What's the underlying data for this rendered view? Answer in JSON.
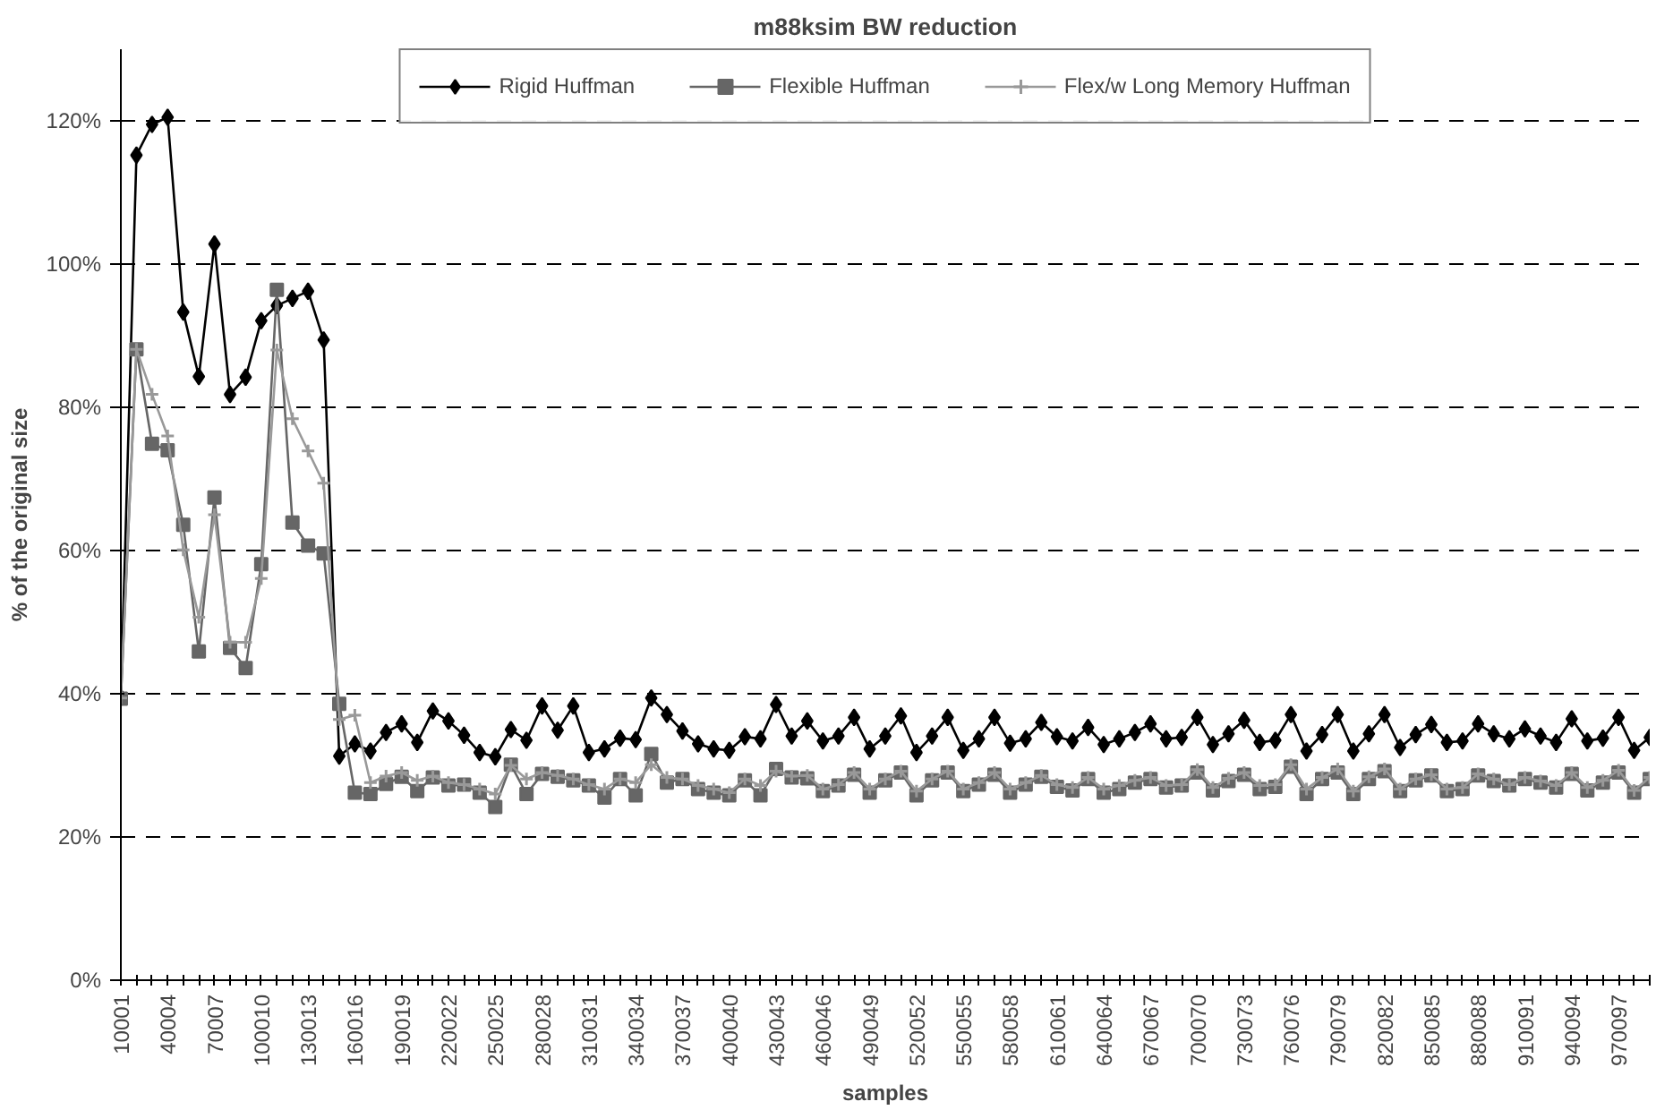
{
  "chart_data": {
    "type": "line",
    "title": "m88ksim BW reduction",
    "xlabel": "samples",
    "ylabel": "% of the original size",
    "categories": [
      "10001",
      null,
      null,
      "40004",
      null,
      null,
      "70007",
      null,
      null,
      "100010",
      null,
      null,
      "130013",
      null,
      null,
      "160016",
      null,
      null,
      "190019",
      null,
      null,
      "220022",
      null,
      null,
      "250025",
      null,
      null,
      "280028",
      null,
      null,
      "310031",
      null,
      null,
      "340034",
      null,
      null,
      "370037",
      null,
      null,
      "400040",
      null,
      null,
      "430043",
      null,
      null,
      "460046",
      null,
      null,
      "490049",
      null,
      null,
      "520052",
      null,
      null,
      "550055",
      null,
      null,
      "580058",
      null,
      null,
      "610061",
      null,
      null,
      "640064",
      null,
      null,
      "670067",
      null,
      null,
      "700070",
      null,
      null,
      "730073",
      null,
      null,
      "760076",
      null,
      null,
      "790079",
      null,
      null,
      "820082",
      null,
      null,
      "850085",
      null,
      null,
      "880088",
      null,
      null,
      "910091",
      null,
      null,
      "940094",
      null,
      null,
      "970097",
      null,
      null
    ],
    "series": [
      {
        "name": "Rigid Huffman",
        "color": "#000000",
        "marker": "diamond",
        "values": [
          39.5,
          115.2,
          119.5,
          120.5,
          93.3,
          84.3,
          102.8,
          81.8,
          84.2,
          92.1,
          94.2,
          95.2,
          96.2,
          89.4,
          31.3,
          33.0,
          32.0,
          34.6,
          35.8,
          33.2,
          37.6,
          36.2,
          34.2,
          31.8,
          31.2,
          35.0,
          33.5,
          38.3,
          34.9,
          38.3,
          31.8,
          32.3,
          33.8,
          33.6,
          39.4,
          37.1,
          34.8,
          33.0,
          32.3,
          32.1,
          34.0,
          33.7,
          38.5,
          34.1,
          36.2,
          33.4,
          34.1,
          36.7,
          32.3,
          34.1,
          36.9,
          31.8,
          34.1,
          36.7,
          32.1,
          33.7,
          36.7,
          33.1,
          33.7,
          36.0,
          34.0,
          33.4,
          35.3,
          32.9,
          33.7,
          34.6,
          35.8,
          33.7,
          33.9,
          36.7,
          32.9,
          34.4,
          36.3,
          33.2,
          33.5,
          37.1,
          32.0,
          34.3,
          37.1,
          32.0,
          34.4,
          37.1,
          32.5,
          34.3,
          35.7,
          33.2,
          33.4,
          35.8,
          34.4,
          33.7,
          35.1,
          34.1,
          33.2,
          36.5,
          33.4,
          33.8,
          36.7,
          32.1,
          33.9
        ]
      },
      {
        "name": "Flexible Huffman",
        "color": "#666666",
        "marker": "square",
        "values": [
          39.3,
          88.1,
          74.9,
          74.0,
          63.6,
          45.9,
          67.4,
          46.4,
          43.6,
          58.1,
          96.4,
          63.9,
          60.7,
          59.6,
          38.6,
          26.2,
          26.0,
          27.4,
          28.4,
          26.4,
          28.3,
          27.2,
          27.3,
          26.2,
          24.2,
          30.1,
          26.0,
          28.8,
          28.4,
          27.9,
          27.2,
          25.5,
          28.1,
          25.8,
          31.6,
          27.6,
          28.1,
          26.7,
          26.2,
          25.8,
          27.9,
          25.8,
          29.5,
          28.3,
          28.2,
          26.4,
          27.2,
          28.7,
          26.2,
          27.9,
          29.0,
          25.8,
          27.9,
          29.0,
          26.4,
          27.3,
          28.7,
          26.2,
          27.3,
          28.4,
          27.0,
          26.5,
          28.1,
          26.2,
          26.7,
          27.6,
          28.1,
          26.9,
          27.2,
          29.0,
          26.5,
          27.8,
          28.7,
          26.7,
          27.0,
          29.8,
          26.0,
          28.1,
          29.0,
          26.0,
          28.1,
          29.2,
          26.4,
          27.9,
          28.6,
          26.4,
          26.7,
          28.6,
          27.8,
          27.2,
          28.1,
          27.6,
          26.9,
          28.8,
          26.5,
          27.6,
          29.0,
          26.2,
          28.1
        ]
      },
      {
        "name": "Flex/w Long Memory Huffman",
        "color": "#999999",
        "marker": "cross",
        "values": [
          39.4,
          88.1,
          81.8,
          76.0,
          60.1,
          50.7,
          65.0,
          47.2,
          47.2,
          56.1,
          88.0,
          78.4,
          73.9,
          69.4,
          36.4,
          37.0,
          27.6,
          28.5,
          29.0,
          27.9,
          28.5,
          27.6,
          27.3,
          26.7,
          26.0,
          30.0,
          28.1,
          29.0,
          28.6,
          28.1,
          27.3,
          26.7,
          28.1,
          27.6,
          30.1,
          28.3,
          28.1,
          27.2,
          26.7,
          26.2,
          28.1,
          27.2,
          29.2,
          28.5,
          28.6,
          26.7,
          27.3,
          29.0,
          26.7,
          28.1,
          29.2,
          26.4,
          28.1,
          29.2,
          26.7,
          27.6,
          29.0,
          26.7,
          27.6,
          28.6,
          27.3,
          26.9,
          28.3,
          26.7,
          27.2,
          27.9,
          28.3,
          27.2,
          27.3,
          29.4,
          26.9,
          28.2,
          29.0,
          27.2,
          27.3,
          30.1,
          26.7,
          28.3,
          29.5,
          26.4,
          28.4,
          29.5,
          26.7,
          28.1,
          28.7,
          26.7,
          26.9,
          28.8,
          28.1,
          27.3,
          28.3,
          27.8,
          27.2,
          29.0,
          26.9,
          27.9,
          29.3,
          26.5,
          28.3
        ]
      }
    ],
    "ylim": [
      0,
      130
    ],
    "yticks": [
      {
        "value": 0,
        "label": "0%"
      },
      {
        "value": 20,
        "label": "20%"
      },
      {
        "value": 40,
        "label": "40%"
      },
      {
        "value": 60,
        "label": "60%"
      },
      {
        "value": 80,
        "label": "80%"
      },
      {
        "value": 100,
        "label": "100%"
      },
      {
        "value": 120,
        "label": "120%"
      }
    ],
    "grid": "y",
    "legend": "top",
    "line_style": "solid"
  }
}
